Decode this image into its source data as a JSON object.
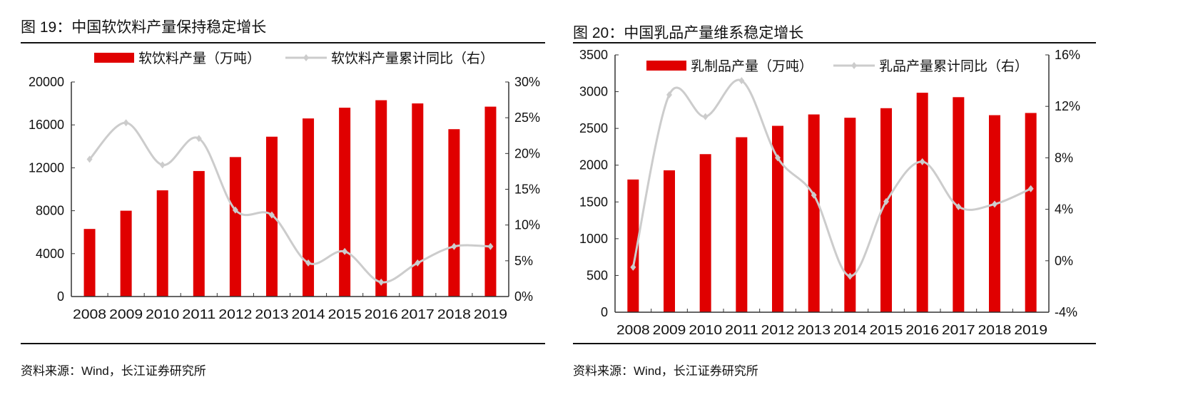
{
  "chart_data": [
    {
      "type": "bar+line",
      "title": "图 19：中国软饮料产量保持稳定增长",
      "categories": [
        "2008",
        "2009",
        "2010",
        "2011",
        "2012",
        "2013",
        "2014",
        "2015",
        "2016",
        "2017",
        "2018",
        "2019"
      ],
      "series": [
        {
          "name": "软饮料产量（万吨）",
          "type": "bar",
          "axis": "left",
          "color": "#E00000",
          "values": [
            6300,
            8000,
            9900,
            11700,
            13000,
            14900,
            16600,
            17600,
            18300,
            18000,
            15600,
            17700
          ]
        },
        {
          "name": "软饮料产量累计同比（右）",
          "type": "line",
          "axis": "right",
          "color": "#CCCCCC",
          "values": [
            19.2,
            24.3,
            18.4,
            22.1,
            12.1,
            11.4,
            4.7,
            6.3,
            2.0,
            4.7,
            7.0,
            7.0
          ]
        }
      ],
      "ylim": [
        0,
        20000
      ],
      "yticks": [
        "0",
        "4000",
        "8000",
        "12000",
        "16000",
        "20000"
      ],
      "y2lim": [
        0,
        30
      ],
      "y2ticks": [
        "0%",
        "5%",
        "10%",
        "15%",
        "20%",
        "25%",
        "30%"
      ],
      "legend": "top",
      "grid": false,
      "source": "资料来源：Wind，长江证券研究所"
    },
    {
      "type": "bar+line",
      "title": "图 20：中国乳品产量维系稳定增长",
      "categories": [
        "2008",
        "2009",
        "2010",
        "2011",
        "2012",
        "2013",
        "2014",
        "2015",
        "2016",
        "2017",
        "2018",
        "2019"
      ],
      "series": [
        {
          "name": "乳制品产量（万吨）",
          "type": "bar",
          "axis": "left",
          "color": "#E00000",
          "values": [
            1805,
            1930,
            2150,
            2380,
            2535,
            2690,
            2645,
            2775,
            2985,
            2925,
            2680,
            2710
          ]
        },
        {
          "name": "乳品产量累计同比（右）",
          "type": "line",
          "axis": "right",
          "color": "#CCCCCC",
          "values": [
            -0.5,
            12.9,
            11.2,
            14.0,
            8.0,
            5.1,
            -1.2,
            4.6,
            7.7,
            4.2,
            4.4,
            5.6
          ]
        }
      ],
      "ylim": [
        0,
        3500
      ],
      "yticks": [
        "0",
        "500",
        "1000",
        "1500",
        "2000",
        "2500",
        "3000",
        "3500"
      ],
      "y2lim": [
        -4,
        16
      ],
      "y2ticks": [
        "-4%",
        "0%",
        "4%",
        "8%",
        "12%",
        "16%"
      ],
      "legend": "top",
      "grid": false,
      "source": "资料来源：Wind，长江证券研究所"
    }
  ]
}
